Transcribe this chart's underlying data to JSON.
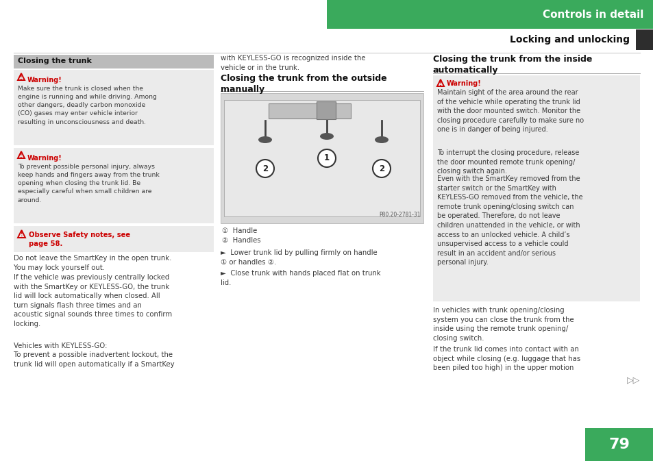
{
  "page_bg": "#ffffff",
  "green_color": "#3aaa5c",
  "dark_color": "#2d2d2d",
  "warning_red": "#cc0000",
  "warn_bg": "#ebebeb",
  "section_hdr_bg": "#bbbbbb",
  "text_color": "#3a3a3a",
  "page_number": "79",
  "header_text": "Controls in detail",
  "subheader_text": "Locking and unlocking",
  "col1_section": "Closing the trunk",
  "w1_title": "Warning!",
  "w1_body": "Make sure the trunk is closed when the\nengine is running and while driving. Among\nother dangers, deadly carbon monoxide\n(CO) gases may enter vehicle interior\nresulting in unconsciousness and death.",
  "w2_title": "Warning!",
  "w2_body": "To prevent possible personal injury, always\nkeep hands and fingers away from the trunk\nopening when closing the trunk lid. Be\nespecially careful when small children are\naround.",
  "obs_title": "Observe Safety notes, see\npage 58.",
  "t1": "Do not leave the SmartKey in the open trunk.\nYou may lock yourself out.",
  "t2": "If the vehicle was previously centrally locked\nwith the SmartKey or KEYLESS-GO, the trunk\nlid will lock automatically when closed. All\nturn signals flash three times and an\nacoustic signal sounds three times to confirm\nlocking.",
  "t3": "Vehicles with KEYLESS-GO:",
  "t4": "To prevent a possible inadvertent lockout, the\ntrunk lid will open automatically if a SmartKey",
  "c2_top": "with KEYLESS-GO is recognized inside the\nvehicle or in the trunk.",
  "c2_title": "Closing the trunk from the outside\nmanually",
  "cap1": "①  Handle",
  "cap2": "②  Handles",
  "b1": "Lower trunk lid by pulling firmly on handle\n① or handles ②.",
  "b2": "Close trunk with hands placed flat on trunk\nlid.",
  "c3_title": "Closing the trunk from the inside\nautomatically",
  "w3_title": "Warning!",
  "w3_body": "Maintain sight of the area around the rear\nof the vehicle while operating the trunk lid\nwith the door mounted switch. Monitor the\nclosing procedure carefully to make sure no\none is in danger of being injured.",
  "c3_t1": "To interrupt the closing procedure, release\nthe door mounted remote trunk opening/\nclosing switch again.",
  "c3_t2": "Even with the SmartKey removed from the\nstarter switch or the SmartKey with\nKEYLESS-GO removed from the vehicle, the\nremote trunk opening/closing switch can\nbe operated. Therefore, do not leave\nchildren unattended in the vehicle, or with\naccess to an unlocked vehicle. A child’s\nunsupervised access to a vehicle could\nresult in an accident and/or serious\npersonal injury.",
  "c3_t3": "In vehicles with trunk opening/closing\nsystem you can close the trunk from the\ninside using the remote trunk opening/\nclosing switch.",
  "c3_t4": "If the trunk lid comes into contact with an\nobject while closing (e.g. luggage that has\nbeen piled too high) in the upper motion",
  "photo_label": "P80.20-2781-31"
}
